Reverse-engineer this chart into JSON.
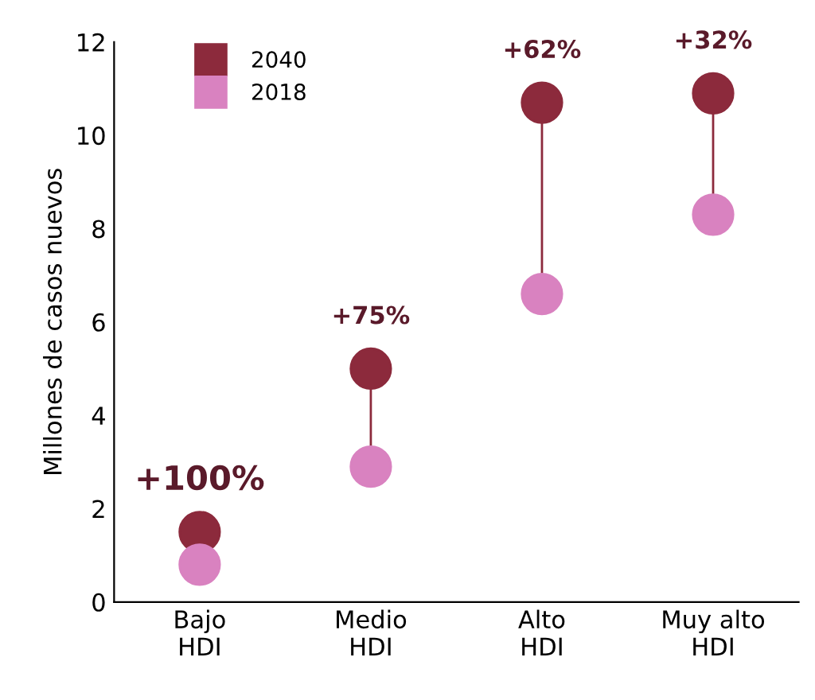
{
  "chart_data": {
    "type": "scatter",
    "ylabel": "Millones de casos nuevos",
    "categories": [
      "Bajo\nHDI",
      "Medio\nHDI",
      "Alto\nHDI",
      "Muy alto\nHDI"
    ],
    "series": [
      {
        "name": "2040",
        "color": "#8c2a3c",
        "values": [
          1.5,
          5.0,
          10.7,
          10.9
        ]
      },
      {
        "name": "2018",
        "color": "#d982c0",
        "values": [
          0.8,
          2.9,
          6.6,
          8.3
        ]
      }
    ],
    "annotations": [
      {
        "text": "+100%",
        "x": "Bajo\nHDI",
        "y": 1.5
      },
      {
        "text": "+75%",
        "x": "Medio\nHDI",
        "y": 5.0
      },
      {
        "text": "+62%",
        "x": "Alto\nHDI",
        "y": 10.7
      },
      {
        "text": "+32%",
        "x": "Muy alto\nHDI",
        "y": 10.9
      }
    ],
    "ylim": [
      0,
      12
    ],
    "yticks": [
      0,
      2,
      4,
      6,
      8,
      10,
      12
    ],
    "grid": false,
    "legend": "top left",
    "marker": "circle"
  }
}
